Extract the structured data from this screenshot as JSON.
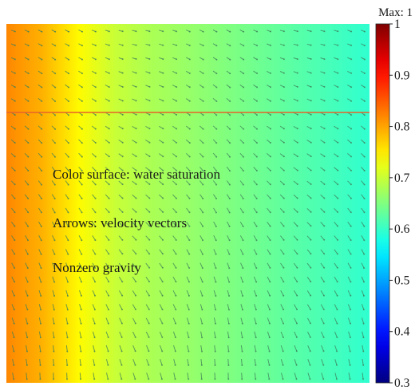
{
  "chart_data": {
    "type": "heatmap",
    "title": "",
    "max_label": "Max: 1",
    "annotations": [
      "Color surface: water saturation",
      "Arrows: velocity vectors",
      "Nonzero gravity"
    ],
    "colorbar": {
      "range": [
        0.3,
        1
      ],
      "ticks": [
        1,
        0.9,
        0.8,
        0.7,
        0.6,
        0.5,
        0.4,
        0.3
      ],
      "tick_labels": [
        "1",
        "0.9",
        "0.8",
        "0.7",
        "0.6",
        "0.5",
        "0.4",
        "0.3"
      ],
      "colormap": "jet"
    },
    "saturation_profile_left_to_right": [
      0.82,
      0.79,
      0.74,
      0.7,
      0.68,
      0.666,
      0.652,
      0.637,
      0.623,
      0.609,
      0.595
    ],
    "front_line": {
      "color": "#e8622a"
    },
    "arrow_color": "#3f7f5a",
    "background": "#ffffff"
  }
}
